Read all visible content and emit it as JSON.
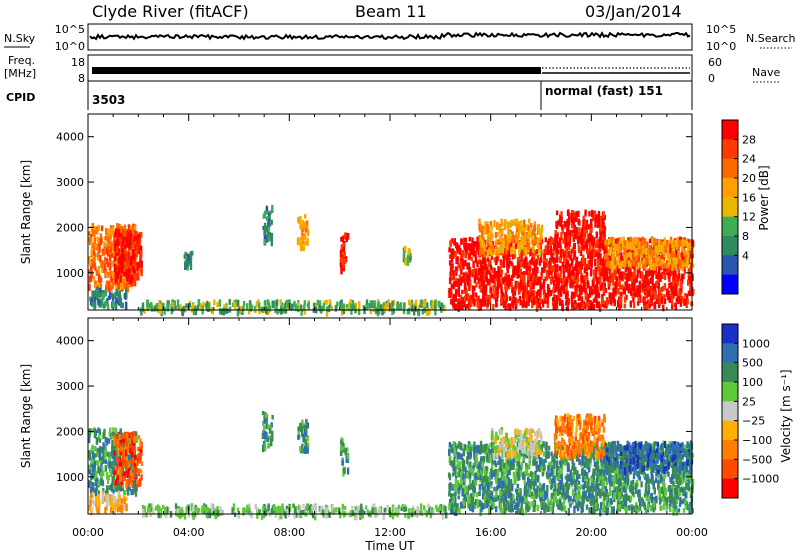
{
  "header": {
    "station": "Clyde River (fitACF)",
    "beam": "Beam 11",
    "date": "03/Jan/2014"
  },
  "strips": {
    "nsky_label": "N.Sky",
    "nsky_ticks": [
      "10^5",
      "10^0"
    ],
    "nsearch_label": "N.Search",
    "nsearch_ticks": [
      "10^5",
      "10^0"
    ],
    "freq_label_1": "Freq.",
    "freq_label_2": "[MHz]",
    "freq_ticks": [
      "18",
      "8"
    ],
    "nave_label": "Nave",
    "nave_ticks": [
      "60",
      "0"
    ],
    "cpid_label": "CPID",
    "cpid_start": "3503",
    "cpid_mode": "normal (fast) 151",
    "cpid_switch_hour": 18.0
  },
  "chart_data": [
    {
      "type": "heatmap",
      "quantity": "Power",
      "ylabel": "Slant Range [km]",
      "xlabel": "",
      "xlim": [
        0,
        24
      ],
      "ylim": [
        180,
        4500
      ],
      "ytick_values": [
        1000,
        2000,
        3000,
        4000
      ],
      "ytick_labels": [
        "1000",
        "2000",
        "3000",
        "4000"
      ],
      "colorbar": {
        "label": "Power [dB]",
        "tick_labels": [
          "28",
          "24",
          "20",
          "16",
          "12",
          "8",
          "4"
        ],
        "colors": [
          "#ff0000",
          "#ff3a00",
          "#ff6a00",
          "#ffa000",
          "#e8b800",
          "#3fae52",
          "#2f8a5e",
          "#2a56b0",
          "#0000ff"
        ]
      },
      "regions": [
        {
          "t": [
            0.0,
            1.9
          ],
          "r": [
            700,
            2100
          ],
          "level": 6
        },
        {
          "t": [
            0.0,
            1.5
          ],
          "r": [
            300,
            700
          ],
          "level": 2
        },
        {
          "t": [
            1.0,
            2.1
          ],
          "r": [
            900,
            2000
          ],
          "level": 8
        },
        {
          "t": [
            2.0,
            14.2
          ],
          "r": [
            200,
            420
          ],
          "level": 3
        },
        {
          "t": [
            3.8,
            4.1
          ],
          "r": [
            1200,
            1500
          ],
          "level": 2
        },
        {
          "t": [
            6.9,
            7.3
          ],
          "r": [
            1700,
            2500
          ],
          "level": 2
        },
        {
          "t": [
            8.3,
            8.7
          ],
          "r": [
            1600,
            2300
          ],
          "level": 5
        },
        {
          "t": [
            10.0,
            10.3
          ],
          "r": [
            1100,
            1900
          ],
          "level": 8
        },
        {
          "t": [
            12.5,
            12.8
          ],
          "r": [
            1300,
            1600
          ],
          "level": 3
        },
        {
          "t": [
            14.3,
            24.0
          ],
          "r": [
            300,
            1800
          ],
          "level": 8
        },
        {
          "t": [
            15.5,
            18.0
          ],
          "r": [
            1500,
            2200
          ],
          "level": 5
        },
        {
          "t": [
            18.5,
            20.5
          ],
          "r": [
            1700,
            2400
          ],
          "level": 8
        },
        {
          "t": [
            20.5,
            24.0
          ],
          "r": [
            1200,
            1800
          ],
          "level": 5
        }
      ]
    },
    {
      "type": "heatmap",
      "quantity": "Velocity",
      "ylabel": "Slant Range [km]",
      "xlabel": "Time UT",
      "xlim": [
        0,
        24
      ],
      "ylim": [
        180,
        4500
      ],
      "ytick_values": [
        1000,
        2000,
        3000,
        4000
      ],
      "ytick_labels": [
        "1000",
        "2000",
        "3000",
        "4000"
      ],
      "xtick_labels": [
        "00:00",
        "04:00",
        "08:00",
        "12:00",
        "16:00",
        "20:00",
        "00:00"
      ],
      "colorbar": {
        "label": "Velocity [m s⁻¹]",
        "tick_labels": [
          "1000",
          "500",
          "100",
          "25",
          "−25",
          "−100",
          "−500",
          "−1000"
        ],
        "colors": [
          "#1a30c8",
          "#2e6fb0",
          "#3a8a58",
          "#5fc83a",
          "#c8c8c8",
          "#ffb000",
          "#ff8000",
          "#ff4a00",
          "#ff0000"
        ]
      },
      "regions": [
        {
          "t": [
            0.0,
            1.9
          ],
          "r": [
            700,
            2100
          ],
          "level": 6
        },
        {
          "t": [
            0.0,
            1.5
          ],
          "r": [
            300,
            700
          ],
          "level": 3
        },
        {
          "t": [
            1.0,
            2.1
          ],
          "r": [
            900,
            2000
          ],
          "level": 1
        },
        {
          "t": [
            2.0,
            14.2
          ],
          "r": [
            200,
            420
          ],
          "level": 5
        },
        {
          "t": [
            6.9,
            7.3
          ],
          "r": [
            1700,
            2500
          ],
          "level": 6
        },
        {
          "t": [
            8.3,
            8.7
          ],
          "r": [
            1600,
            2300
          ],
          "level": 6
        },
        {
          "t": [
            10.0,
            10.3
          ],
          "r": [
            1100,
            1900
          ],
          "level": 6
        },
        {
          "t": [
            14.3,
            24.0
          ],
          "r": [
            300,
            1800
          ],
          "level": 6
        },
        {
          "t": [
            16.0,
            18.0
          ],
          "r": [
            1500,
            2100
          ],
          "level": 4
        },
        {
          "t": [
            18.5,
            20.5
          ],
          "r": [
            1500,
            2400
          ],
          "level": 2
        },
        {
          "t": [
            20.5,
            24.0
          ],
          "r": [
            1200,
            1800
          ],
          "level": 7
        }
      ]
    }
  ]
}
